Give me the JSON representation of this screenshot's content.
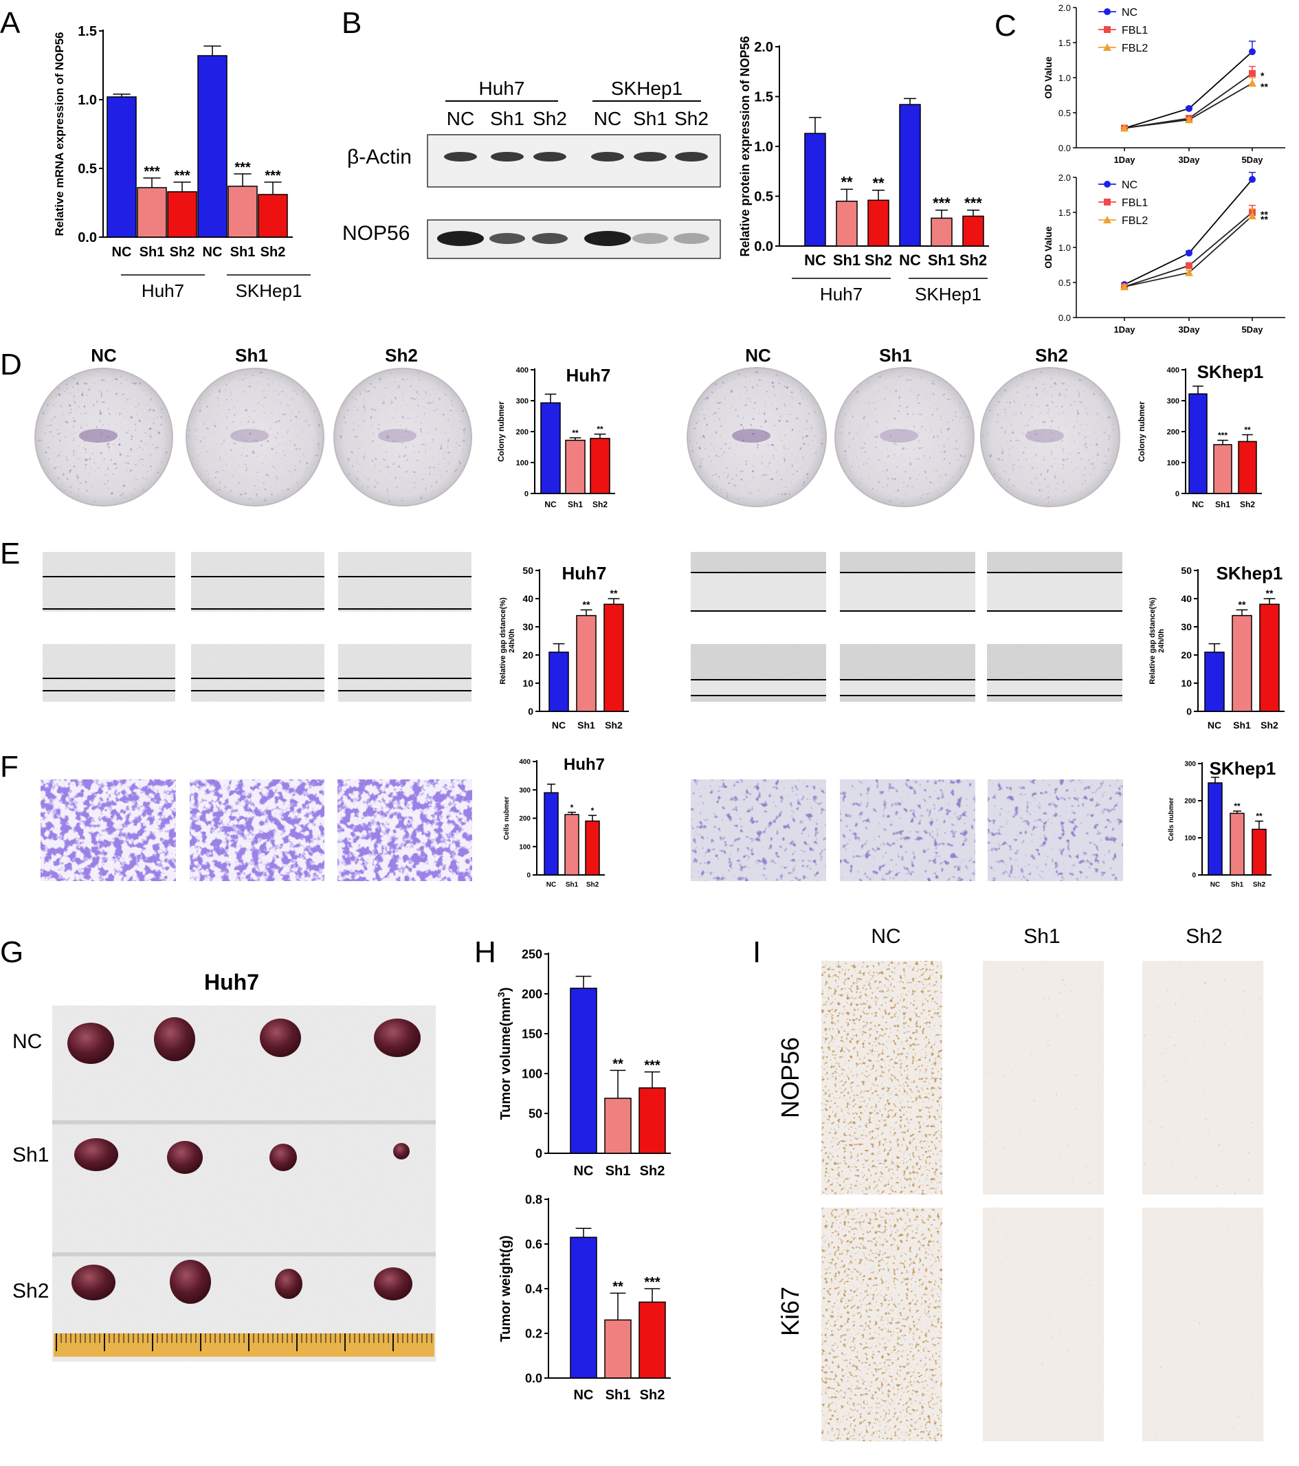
{
  "panel_letters": [
    "A",
    "B",
    "C",
    "D",
    "E",
    "F",
    "G",
    "H",
    "I"
  ],
  "colors": {
    "nc": "#1f1fe6",
    "sh1": "#f08080",
    "sh2": "#ee1111",
    "series_nc": "#1f1fe6",
    "series_fbl1": "#ee4a4a",
    "series_fbl2": "#f0a030"
  },
  "blot": {
    "groups": [
      "Huh7",
      "SKHep1"
    ],
    "lanes": [
      "NC",
      "Sh1",
      "Sh2",
      "NC",
      "Sh1",
      "Sh2"
    ],
    "rows": [
      "β-Actin",
      "NOP56"
    ]
  },
  "plates": {
    "left_labels": [
      "NC",
      "Sh1",
      "Sh2"
    ],
    "right_labels": [
      "NC",
      "Sh1",
      "Sh2"
    ]
  },
  "tumor": {
    "title": "Huh7",
    "rows": [
      "NC",
      "Sh1",
      "Sh2"
    ]
  },
  "ihc": {
    "columns": [
      "NC",
      "Sh1",
      "Sh2"
    ],
    "rows": [
      "NOP56",
      "Ki67"
    ]
  },
  "chart_data": [
    {
      "id": "A",
      "type": "bar",
      "categories": [
        "NC",
        "Sh1",
        "Sh2",
        "NC",
        "Sh1",
        "Sh2"
      ],
      "values": [
        1.02,
        0.36,
        0.33,
        1.32,
        0.37,
        0.31
      ],
      "errors": [
        0.02,
        0.07,
        0.07,
        0.07,
        0.09,
        0.09
      ],
      "sig": [
        "",
        "***",
        "***",
        "",
        "***",
        "***"
      ],
      "groups": [
        "Huh7",
        "SKHep1"
      ],
      "ylabel": "Relative mRNA expression of NOP56",
      "yticks": [
        "0.0",
        "0.5",
        "1.0",
        "1.5"
      ],
      "ylim": [
        0,
        1.5
      ]
    },
    {
      "id": "B",
      "type": "bar",
      "categories": [
        "NC",
        "Sh1",
        "Sh2",
        "NC",
        "Sh1",
        "Sh2"
      ],
      "values": [
        1.13,
        0.45,
        0.46,
        1.42,
        0.28,
        0.3
      ],
      "errors": [
        0.16,
        0.12,
        0.1,
        0.06,
        0.08,
        0.06
      ],
      "sig": [
        "",
        "**",
        "**",
        "",
        "***",
        "***"
      ],
      "groups": [
        "Huh7",
        "SKHep1"
      ],
      "ylabel": "Relative protein expression of NOP56",
      "yticks": [
        "0.0",
        "0.5",
        "1.0",
        "1.5",
        "2.0"
      ],
      "ylim": [
        0,
        2
      ]
    },
    {
      "id": "C-top",
      "type": "line",
      "x": [
        "1Day",
        "3Day",
        "5Day"
      ],
      "ylabel": "OD Value",
      "yticks": [
        "0.0",
        "0.5",
        "1.0",
        "1.5",
        "2.0"
      ],
      "ylim": [
        0,
        2
      ],
      "series": [
        {
          "name": "NC",
          "values": [
            0.28,
            0.56,
            1.37
          ],
          "errors": [
            0.01,
            0.02,
            0.15
          ]
        },
        {
          "name": "FBL1",
          "values": [
            0.28,
            0.42,
            1.06
          ],
          "errors": [
            0.01,
            0.02,
            0.1
          ]
        },
        {
          "name": "FBL2",
          "values": [
            0.28,
            0.4,
            0.92
          ],
          "errors": [
            0.01,
            0.02,
            0.08
          ]
        }
      ],
      "sig": [
        "*",
        "**"
      ]
    },
    {
      "id": "C-bottom",
      "type": "line",
      "x": [
        "1Day",
        "3Day",
        "5Day"
      ],
      "ylabel": "OD Value",
      "yticks": [
        "0.0",
        "0.5",
        "1.0",
        "1.5",
        "2.0"
      ],
      "ylim": [
        0,
        2
      ],
      "series": [
        {
          "name": "NC",
          "values": [
            0.47,
            0.92,
            1.97
          ],
          "errors": [
            0.02,
            0.03,
            0.1
          ]
        },
        {
          "name": "FBL1",
          "values": [
            0.44,
            0.74,
            1.5
          ],
          "errors": [
            0.02,
            0.03,
            0.1
          ]
        },
        {
          "name": "FBL2",
          "values": [
            0.44,
            0.64,
            1.45
          ],
          "errors": [
            0.02,
            0.03,
            0.1
          ]
        }
      ],
      "sig": [
        "**",
        "**"
      ]
    },
    {
      "id": "D-Huh7",
      "type": "bar",
      "title": "Huh7",
      "categories": [
        "NC",
        "Sh1",
        "Sh2"
      ],
      "values": [
        293,
        172,
        178
      ],
      "errors": [
        28,
        8,
        14
      ],
      "sig": [
        "",
        "**",
        "**"
      ],
      "ylabel": "Colony nubmer",
      "yticks": [
        "0",
        "100",
        "200",
        "300",
        "400"
      ],
      "ylim": [
        0,
        400
      ]
    },
    {
      "id": "D-SKhep1",
      "type": "bar",
      "title": "SKhep1",
      "categories": [
        "NC",
        "Sh1",
        "Sh2"
      ],
      "values": [
        322,
        158,
        168
      ],
      "errors": [
        25,
        14,
        22
      ],
      "sig": [
        "",
        "***",
        "**"
      ],
      "ylabel": "Colony nubmer",
      "yticks": [
        "0",
        "100",
        "200",
        "300",
        "400"
      ],
      "ylim": [
        0,
        400
      ]
    },
    {
      "id": "E-Huh7",
      "type": "bar",
      "title": "Huh7",
      "categories": [
        "NC",
        "Sh1",
        "Sh2"
      ],
      "values": [
        21,
        34,
        38
      ],
      "errors": [
        3,
        2,
        2
      ],
      "sig": [
        "",
        "**",
        "**"
      ],
      "ylabel": "Relative gap dstance(%)",
      "ylabel2": "24h/0h",
      "yticks": [
        "0",
        "10",
        "20",
        "30",
        "40",
        "50"
      ],
      "ylim": [
        0,
        50
      ]
    },
    {
      "id": "E-SKhep1",
      "type": "bar",
      "title": "SKhep1",
      "categories": [
        "NC",
        "Sh1",
        "Sh2"
      ],
      "values": [
        21,
        34,
        38
      ],
      "errors": [
        3,
        2,
        2
      ],
      "sig": [
        "",
        "**",
        "**"
      ],
      "ylabel": "Relative gap dstance(%)",
      "ylabel2": "24h/0h",
      "yticks": [
        "0",
        "10",
        "20",
        "30",
        "40",
        "50"
      ],
      "ylim": [
        0,
        50
      ]
    },
    {
      "id": "F-Huh7",
      "type": "bar",
      "title": "Huh7",
      "categories": [
        "NC",
        "Sh1",
        "Sh2"
      ],
      "values": [
        290,
        213,
        190
      ],
      "errors": [
        30,
        8,
        20
      ],
      "sig": [
        "",
        "*",
        "*"
      ],
      "ylabel": "Cells nubmer",
      "yticks": [
        "0",
        "100",
        "200",
        "300",
        "400"
      ],
      "ylim": [
        0,
        400
      ]
    },
    {
      "id": "F-SKhep1",
      "type": "bar",
      "title": "SKhep1",
      "categories": [
        "NC",
        "Sh1",
        "Sh2"
      ],
      "values": [
        248,
        166,
        123
      ],
      "errors": [
        15,
        6,
        22
      ],
      "sig": [
        "",
        "**",
        "**"
      ],
      "ylabel": "Cells nubmer",
      "yticks": [
        "0",
        "100",
        "200",
        "300"
      ],
      "ylim": [
        0,
        300
      ]
    },
    {
      "id": "H-volume",
      "type": "bar",
      "categories": [
        "NC",
        "Sh1",
        "Sh2"
      ],
      "values": [
        207,
        69,
        82
      ],
      "errors": [
        15,
        35,
        20
      ],
      "sig": [
        "",
        "**",
        "***"
      ],
      "ylabel": "Tumor volume(mm3)",
      "yticks": [
        "0",
        "50",
        "100",
        "150",
        "200",
        "250"
      ],
      "ylim": [
        0,
        250
      ]
    },
    {
      "id": "H-weight",
      "type": "bar",
      "categories": [
        "NC",
        "Sh1",
        "Sh2"
      ],
      "values": [
        0.63,
        0.26,
        0.34
      ],
      "errors": [
        0.04,
        0.12,
        0.06
      ],
      "sig": [
        "",
        "**",
        "***"
      ],
      "ylabel": "Tumor weight(g)",
      "yticks": [
        "0.0",
        "0.2",
        "0.4",
        "0.6",
        "0.8"
      ],
      "ylim": [
        0,
        0.8
      ]
    }
  ]
}
